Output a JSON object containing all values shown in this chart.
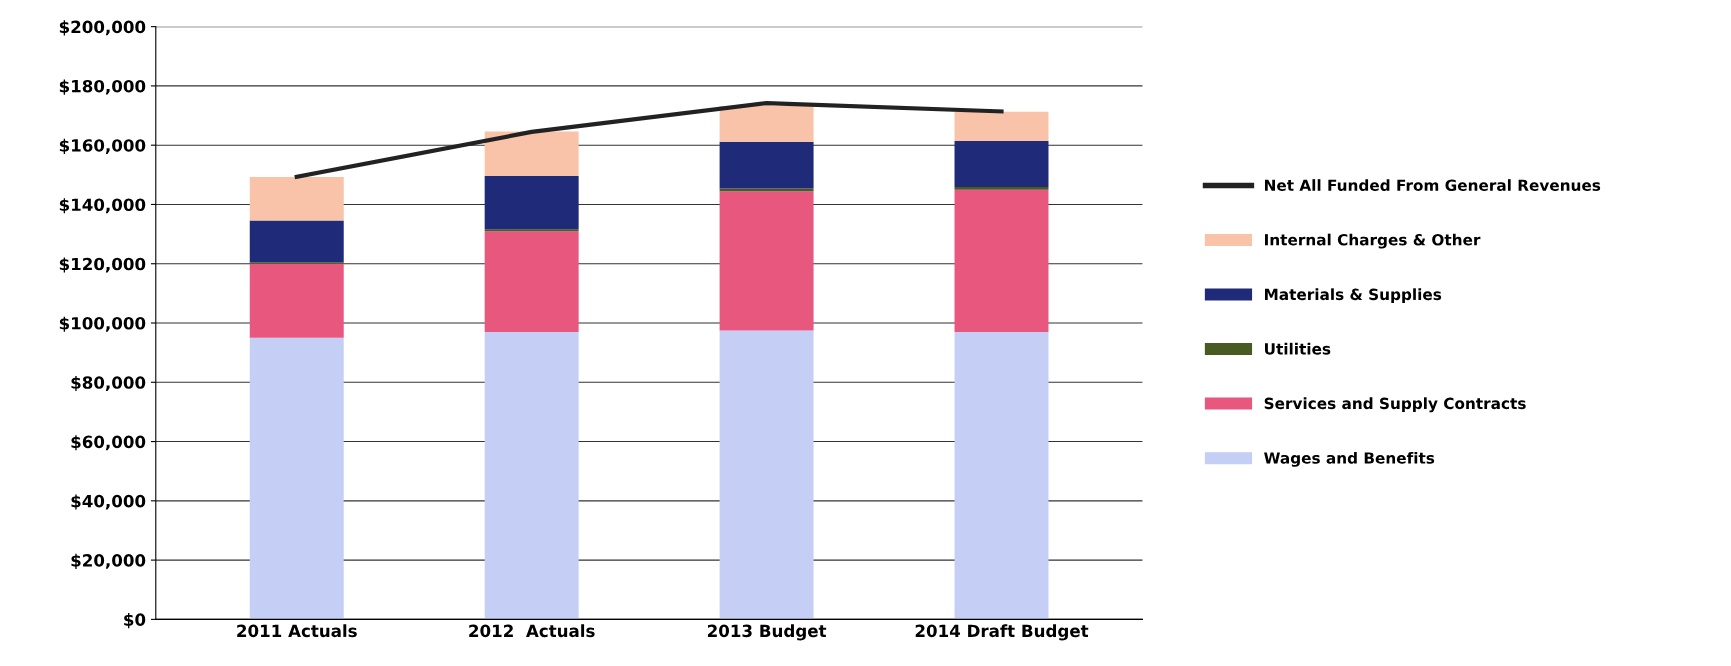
{
  "chart_data": {
    "type": "bar",
    "stacked": true,
    "categories": [
      "2011 Actuals",
      "2012  Actuals",
      "2013 Budget",
      "2014 Draft Budget"
    ],
    "series": [
      {
        "name": "Wages and Benefits",
        "color": "#c5cff5",
        "values": [
          95000,
          97000,
          97500,
          97000
        ]
      },
      {
        "name": "Services and Supply Contracts",
        "color": "#e8577e",
        "values": [
          25000,
          34000,
          47000,
          48000
        ]
      },
      {
        "name": "Utilities",
        "color": "#4a5a23",
        "values": [
          500,
          600,
          900,
          900
        ]
      },
      {
        "name": "Materials & Supplies",
        "color": "#1f2a78",
        "values": [
          14100,
          18000,
          15800,
          15500
        ]
      },
      {
        "name": "Internal Charges & Other",
        "color": "#f8c3a8",
        "values": [
          14700,
          15000,
          12000,
          9900
        ]
      },
      {
        "name": "Net All Funded From General Revenues",
        "type": "line",
        "color": "#222222",
        "values": [
          149300,
          164500,
          174200,
          171400
        ]
      }
    ],
    "ylim": [
      0,
      200000
    ],
    "yticks": [
      {
        "value": 0,
        "label": "$0"
      },
      {
        "value": 20000,
        "label": "$20,000"
      },
      {
        "value": 40000,
        "label": "$40,000"
      },
      {
        "value": 60000,
        "label": "$60,000"
      },
      {
        "value": 80000,
        "label": "$80,000"
      },
      {
        "value": 100000,
        "label": "$100,000"
      },
      {
        "value": 120000,
        "label": "$120,000"
      },
      {
        "value": 140000,
        "label": "$140,000"
      },
      {
        "value": 160000,
        "label": "$160,000"
      },
      {
        "value": 180000,
        "label": "$180,000"
      },
      {
        "value": 200000,
        "label": "$200,000"
      }
    ],
    "grid": "y",
    "legend": "right",
    "marker": "none",
    "line_style": "solid"
  }
}
